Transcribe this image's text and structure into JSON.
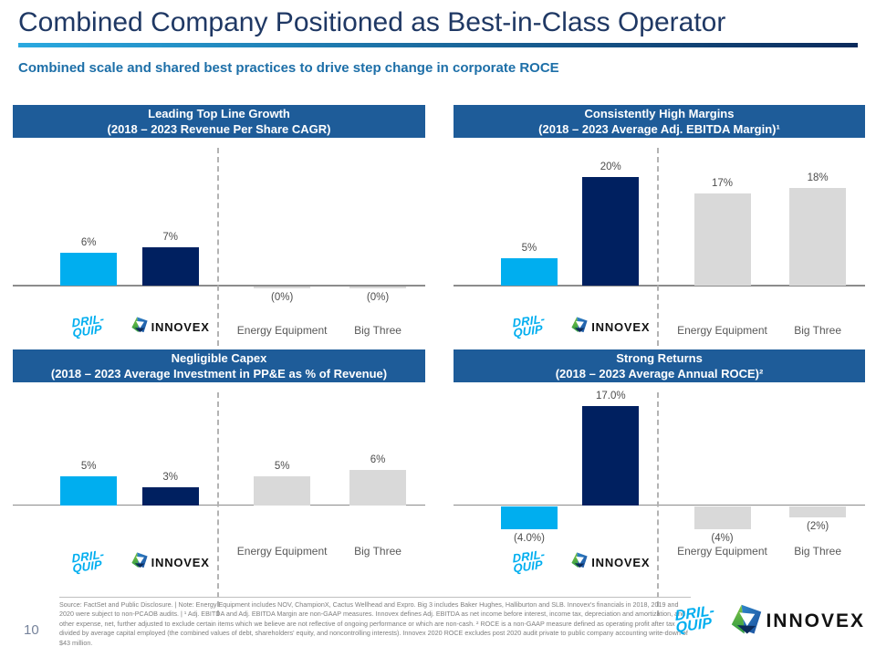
{
  "slide": {
    "title": "Combined Company Positioned as Best-in-Class Operator",
    "subtitle": "Combined scale and shared best practices to drive step change in corporate ROCE",
    "page_number": "10"
  },
  "colors": {
    "accent_cyan": "#00AEEF",
    "accent_navy": "#002060",
    "bar_grey": "#D9D9D9",
    "header_band_blue": "#1E5C99",
    "title_navy": "#1F3864",
    "subtitle_blue": "#1D6FA8"
  },
  "entities": [
    {
      "name": "Dril-Quip",
      "label_type": "logo-drilquip",
      "color": "#00AEEF"
    },
    {
      "name": "Innovex",
      "label_type": "logo-innovex",
      "color": "#002060"
    },
    {
      "name": "Energy Equipment",
      "label_type": "text",
      "color": "#D9D9D9"
    },
    {
      "name": "Big Three",
      "label_type": "text",
      "color": "#D9D9D9"
    }
  ],
  "chart_data": [
    {
      "type": "bar",
      "title": "Leading Top Line Growth",
      "subtitle": "(2018 – 2023 Revenue Per Share CAGR)",
      "categories": [
        "Dril-Quip",
        "Innovex",
        "Energy Equipment",
        "Big Three"
      ],
      "values": [
        6,
        7,
        0,
        0
      ],
      "labels": [
        "6%",
        "7%",
        "(0%)",
        "(0%)"
      ],
      "ylim": [
        -5,
        26
      ],
      "unit": "%",
      "grid": false,
      "legend": "none"
    },
    {
      "type": "bar",
      "title": "Consistently High Margins",
      "subtitle": "(2018 – 2023 Average Adj. EBITDA Margin)¹",
      "categories": [
        "Dril-Quip",
        "Innovex",
        "Energy Equipment",
        "Big Three"
      ],
      "values": [
        5,
        20,
        17,
        18
      ],
      "labels": [
        "5%",
        "20%",
        "17%",
        "18%"
      ],
      "ylim": [
        -5,
        26
      ],
      "unit": "%",
      "grid": false,
      "legend": "none"
    },
    {
      "type": "bar",
      "title": "Negligible Capex",
      "subtitle": "(2018 – 2023 Average Investment in PP&E as % of Revenue)",
      "categories": [
        "Dril-Quip",
        "Innovex",
        "Energy Equipment",
        "Big Three"
      ],
      "values": [
        5,
        3,
        5,
        6
      ],
      "labels": [
        "5%",
        "3%",
        "5%",
        "6%"
      ],
      "ylim": [
        -9,
        20
      ],
      "unit": "%",
      "grid": false,
      "legend": "none"
    },
    {
      "type": "bar",
      "title": "Strong Returns",
      "subtitle": "(2018 – 2023 Average Annual ROCE)²",
      "categories": [
        "Dril-Quip",
        "Innovex",
        "Energy Equipment",
        "Big Three"
      ],
      "values": [
        -4,
        17,
        -4,
        -2
      ],
      "labels": [
        "(4.0%)",
        "17.0%",
        "(4%)",
        "(2%)"
      ],
      "ylim": [
        -9,
        20
      ],
      "unit": "%",
      "grid": false,
      "legend": "none"
    }
  ],
  "logos": {
    "drilquip": {
      "line1": "DRIL-",
      "line2": "QUIP"
    },
    "innovex": {
      "text": "INNOVEX"
    }
  },
  "footer": {
    "note": "Source: FactSet and Public Disclosure. | Note: Energy Equipment includes NOV, ChampionX, Cactus Wellhead and Expro. Big 3 includes Baker Hughes, Halliburton and SLB. Innovex's financials in 2018, 2019 and 2020 were subject to non-PCAOB audits. | ¹ Adj. EBITDA and Adj. EBITDA Margin are non-GAAP measures. Innovex defines Adj. EBITDA as net income before interest, income tax, depreciation and amortization, and other expense, net, further adjusted to exclude certain items which we believe are not reflective of ongoing performance or which are non-cash. ² ROCE is a non-GAAP measure defined as operating profit after tax divided by average capital employed (the combined values of debt, shareholders' equity, and noncontrolling interests). Innovex 2020 ROCE excludes post 2020 audit private to public company accounting write-down of $43 million."
  }
}
